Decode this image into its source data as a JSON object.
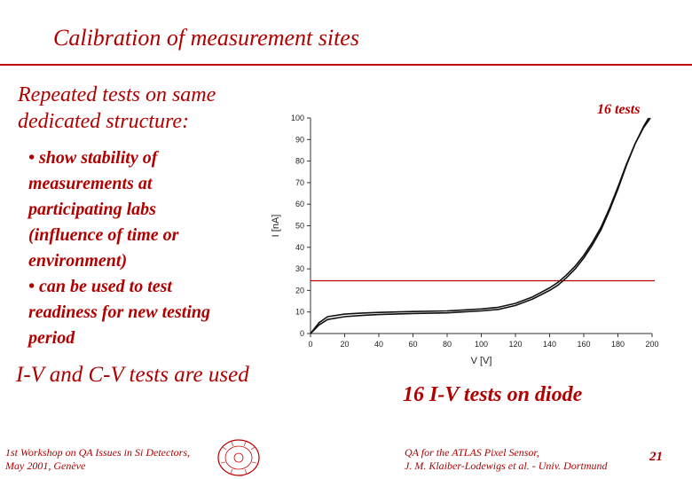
{
  "slide": {
    "title": "Calibration of measurement sites",
    "intro": "Repeated tests on same dedicated structure:",
    "bullets": [
      "• show stability of\nmeasurements at\nparticipating labs\n(influence of time or\nenvironment)",
      "• can be used to test\nreadiness for new testing\nperiod"
    ],
    "iv_text": "I-V and C-V tests are used",
    "tests_label": "16 tests",
    "caption": "16 I-V tests on diode",
    "footer_left": "1st Workshop on QA Issues in Si Detectors,\nMay 2001, Genève",
    "footer_mid": "QA for the ATLAS Pixel Sensor,\nJ. M. Klaiber-Lodewigs et al. - Univ. Dortmund",
    "page_number": "21",
    "accent_color": "#b00000"
  },
  "chart_data": {
    "type": "line",
    "xlabel": "V [V]",
    "ylabel": "I [nA]",
    "xlim": [
      0,
      200
    ],
    "ylim": [
      0,
      100
    ],
    "xticks": [
      0,
      20,
      40,
      60,
      80,
      100,
      120,
      140,
      160,
      180,
      200
    ],
    "yticks": [
      0,
      10,
      20,
      30,
      40,
      50,
      60,
      70,
      80,
      90,
      100
    ],
    "grid": false,
    "series": [
      {
        "x": [
          0,
          5,
          10,
          20,
          30,
          40,
          60,
          80,
          100,
          110,
          120,
          130,
          140,
          145,
          150,
          155,
          160,
          165,
          170,
          175,
          180,
          185,
          190,
          195,
          198
        ],
        "y": [
          0,
          4,
          6.5,
          7.8,
          8.4,
          8.8,
          9.3,
          9.6,
          10.5,
          11.2,
          13,
          16,
          20,
          22.5,
          26,
          30,
          35,
          41,
          48,
          57,
          67,
          78,
          88,
          96,
          100
        ]
      },
      {
        "x": [
          0,
          5,
          10,
          20,
          30,
          40,
          60,
          80,
          100,
          110,
          120,
          130,
          140,
          145,
          150,
          155,
          160,
          165,
          170,
          175,
          180,
          185,
          190,
          195,
          199
        ],
        "y": [
          0,
          5,
          7.8,
          9,
          9.5,
          9.8,
          10.2,
          10.5,
          11.4,
          12.2,
          14,
          17,
          21.2,
          23.8,
          27.3,
          31.3,
          36.2,
          42.2,
          49.2,
          58,
          68,
          78.5,
          88,
          95.5,
          100
        ]
      }
    ],
    "reference_line": {
      "y": 24.5,
      "color": "#c00000"
    },
    "line_color": "#111111"
  }
}
